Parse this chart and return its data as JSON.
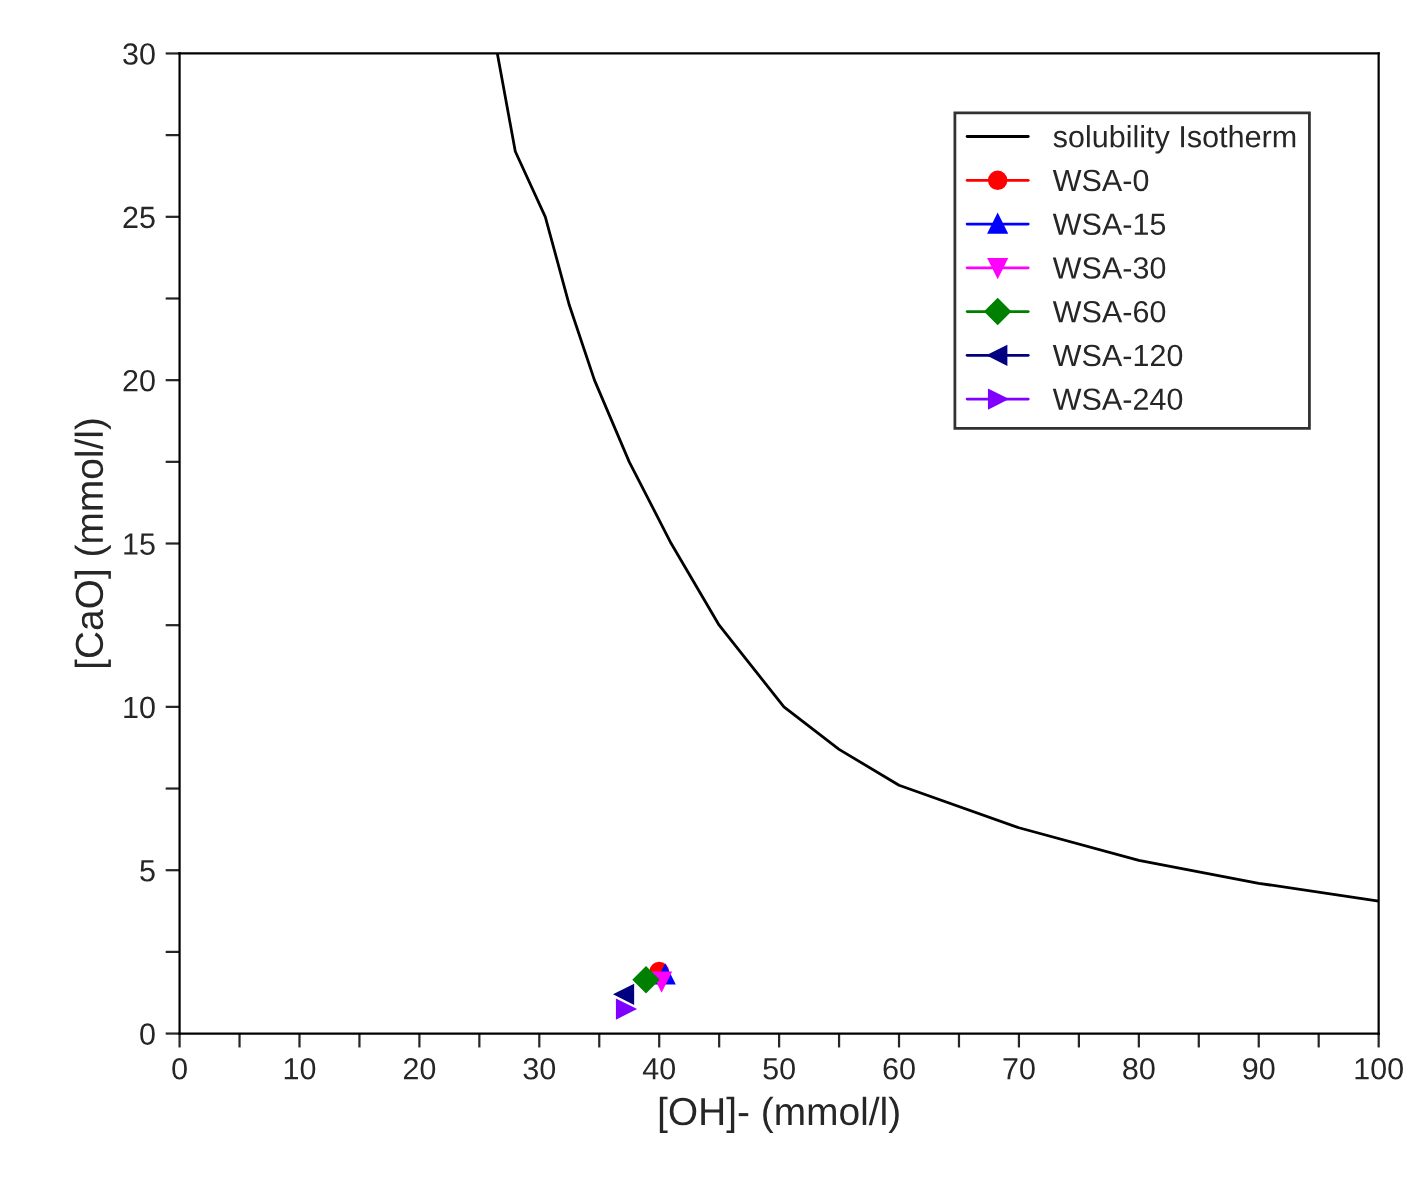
{
  "chart_data": {
    "type": "scatter",
    "xlabel": "[OH]- (mmol/l)",
    "ylabel": "[CaO] (mmol/l)",
    "xlim": [
      0,
      100
    ],
    "ylim": [
      0,
      30
    ],
    "xticks": [
      0,
      {
        "value": 5,
        "label": null
      },
      10,
      {
        "value": 15,
        "label": null
      },
      20,
      {
        "value": 25,
        "label": null
      },
      30,
      {
        "value": 35,
        "label": null
      },
      40,
      {
        "value": 45,
        "label": null
      },
      50,
      {
        "value": 55,
        "label": null
      },
      60,
      {
        "value": 65,
        "label": null
      },
      70,
      {
        "value": 75,
        "label": null
      },
      80,
      {
        "value": 85,
        "label": null
      },
      90,
      {
        "value": 95,
        "label": null
      },
      100
    ],
    "yticks": [
      0,
      {
        "value": 2.5,
        "label": null
      },
      5,
      {
        "value": 7.5,
        "label": null
      },
      10,
      {
        "value": 12.5,
        "label": null
      },
      15,
      {
        "value": 17.5,
        "label": null
      },
      20,
      {
        "value": 22.5,
        "label": null
      },
      25,
      {
        "value": 27.5,
        "label": null
      },
      30
    ],
    "grid": false,
    "legend": "top right",
    "series": [
      {
        "name": "solubility Isotherm",
        "type": "line",
        "color": "#000000",
        "marker": "none",
        "x": [
          26.5,
          28,
          30.5,
          32.5,
          34.6,
          37.5,
          41,
          45,
          50.4,
          55,
          60,
          70,
          80,
          90,
          100
        ],
        "values": [
          30,
          27,
          25,
          22.3,
          20,
          17.5,
          15,
          12.5,
          10,
          8.7,
          7.6,
          6.3,
          5.3,
          4.6,
          4.05
        ]
      },
      {
        "name": "WSA-0",
        "color": "#ff0000",
        "marker": "circle",
        "x": [
          40
        ],
        "values": [
          1.9
        ]
      },
      {
        "name": "WSA-15",
        "color": "#0000ff",
        "marker": "triangle",
        "x": [
          40.5
        ],
        "values": [
          1.8
        ]
      },
      {
        "name": "WSA-30",
        "color": "#ff00ff",
        "marker": "triangle_down",
        "x": [
          40.2
        ],
        "values": [
          1.6
        ]
      },
      {
        "name": "WSA-60",
        "color": "#008000",
        "marker": "diamond",
        "x": [
          38.9
        ],
        "values": [
          1.65
        ]
      },
      {
        "name": "WSA-120",
        "color": "#000080",
        "marker": "triangle_left",
        "x": [
          37.1
        ],
        "values": [
          1.2
        ]
      },
      {
        "name": "WSA-240",
        "color": "#8000ff",
        "marker": "triangle_right",
        "x": [
          37.2
        ],
        "values": [
          0.75
        ]
      }
    ]
  }
}
